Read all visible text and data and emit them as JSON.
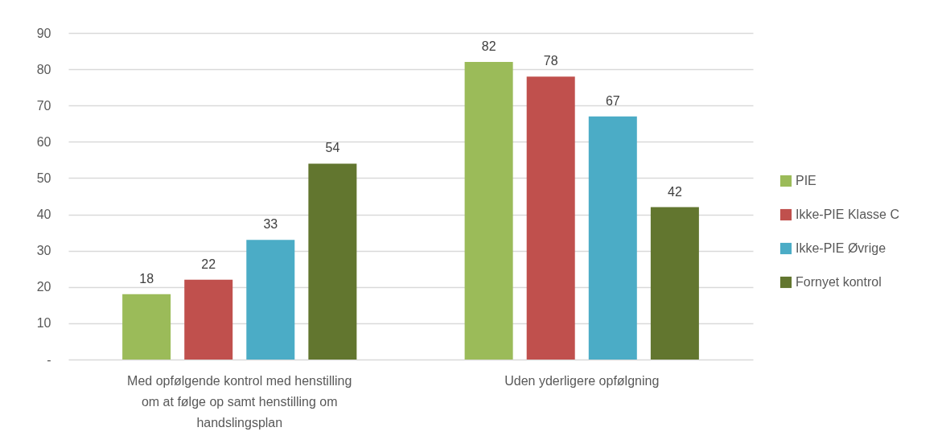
{
  "chart_data": {
    "type": "bar",
    "categories": [
      "Med opfølgende kontrol med henstilling om at følge op samt henstilling om handslingsplan",
      "Uden yderligere opfølgning"
    ],
    "series": [
      {
        "name": "PIE",
        "color": "#9bbb59",
        "values": [
          18,
          82
        ]
      },
      {
        "name": "Ikke-PIE Klasse C",
        "color": "#c0504d",
        "values": [
          22,
          78
        ]
      },
      {
        "name": "Ikke-PIE Øvrige",
        "color": "#4bacc6",
        "values": [
          33,
          67
        ]
      },
      {
        "name": "Fornyet kontrol",
        "color": "#62762f",
        "values": [
          54,
          42
        ]
      }
    ],
    "ylim": [
      0,
      90
    ],
    "yticks": [
      {
        "value": 0,
        "label": "-"
      },
      10,
      20,
      30,
      40,
      50,
      60,
      70,
      80,
      90
    ],
    "grid": "y",
    "legend": "right",
    "data_labels": true
  }
}
